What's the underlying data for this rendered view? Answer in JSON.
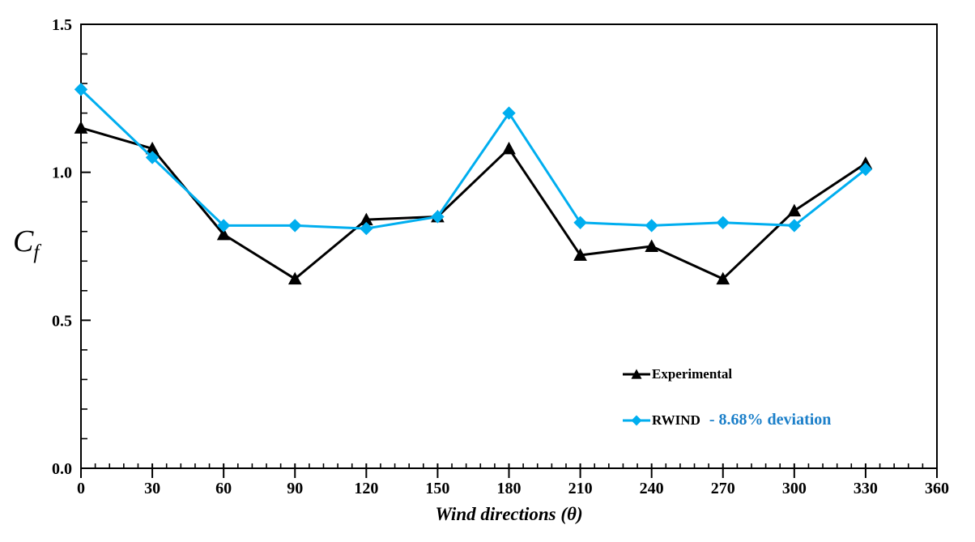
{
  "chart_data": {
    "type": "line",
    "title": "",
    "xlabel": "Wind directions (θ)",
    "ylabel": "Cf",
    "ylabel_parts": {
      "main": "C",
      "sub": "f"
    },
    "x": [
      0,
      30,
      60,
      90,
      120,
      150,
      180,
      210,
      240,
      270,
      300,
      330
    ],
    "xlim": [
      0,
      360
    ],
    "ylim": [
      0,
      1.5
    ],
    "x_major_step": 30,
    "x_minor_step": 6,
    "x_tick_labels": [
      "0",
      "30",
      "60",
      "90",
      "120",
      "150",
      "180",
      "210",
      "240",
      "270",
      "300",
      "330",
      "360"
    ],
    "y_major_ticks": [
      0,
      0.5,
      1,
      1.5
    ],
    "y_tick_labels": [
      "0.0",
      "0.5",
      "1.0",
      "1.5"
    ],
    "y_minor_step": 0.1,
    "grid": false,
    "axis_color": "#000000",
    "legend_position": "inside-lower-right",
    "series": [
      {
        "name": "Experimental",
        "color": "#000000",
        "marker": "triangle",
        "values": [
          1.15,
          1.08,
          0.79,
          0.64,
          0.84,
          0.85,
          1.08,
          0.72,
          0.75,
          0.64,
          0.87,
          1.03
        ],
        "annotation": "",
        "annotation_color": "#000000"
      },
      {
        "name": "RWIND",
        "color": "#00AEEF",
        "marker": "diamond",
        "values": [
          1.28,
          1.05,
          0.82,
          0.82,
          0.81,
          0.85,
          1.2,
          0.83,
          0.82,
          0.83,
          0.82,
          1.01
        ],
        "annotation": "- 8.68% deviation",
        "annotation_color": "#1B7FC9"
      }
    ]
  }
}
